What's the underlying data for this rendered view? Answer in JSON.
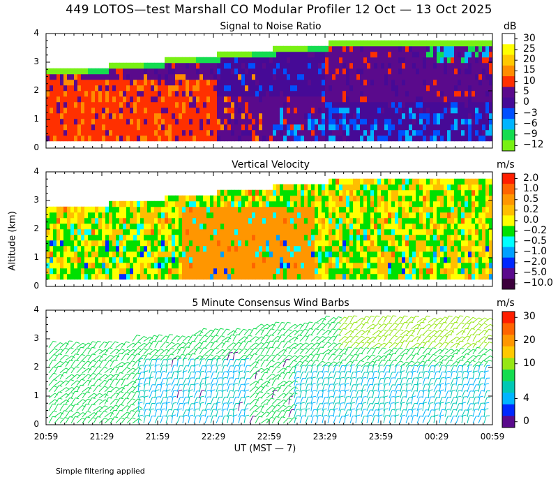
{
  "chart_data": {
    "type": "heatmap",
    "title": "449 LOTOS—test Marshall CO Modular Profiler 12 Oct — 13 Oct 2025",
    "ylabel": "Altitude (km)",
    "xlabel": "UT  (MST — 7)",
    "x_ticks": [
      "20:59",
      "21:29",
      "21:59",
      "22:29",
      "22:59",
      "23:29",
      "23:59",
      "00:29",
      "00:59"
    ],
    "y_ticks": [
      "0",
      "1",
      "2",
      "3",
      "4"
    ],
    "ylim": [
      0,
      4
    ],
    "footnote": "Simple filtering applied",
    "panels": [
      {
        "title": "Signal to Noise Ratio",
        "units": "dB",
        "colorbar_labels": [
          "30",
          "25",
          "20",
          "15",
          "10",
          "5",
          "0",
          "−3",
          "−6",
          "−9",
          "−12"
        ],
        "colors": [
          "#ffffff",
          "#ffff00",
          "#ffc800",
          "#ff8c00",
          "#ff3000",
          "#5a0a8c",
          "#460a96",
          "#0050ff",
          "#00b4ff",
          "#14dc50",
          "#78f014"
        ]
      },
      {
        "title": "Vertical Velocity",
        "units": "m/s",
        "colorbar_labels": [
          "2.0",
          "1.0",
          "0.5",
          "0.2",
          "0.0",
          "−0.2",
          "−0.5",
          "−1.0",
          "−2.0",
          "−5.0",
          "−10.0"
        ],
        "colors": [
          "#ff1e00",
          "#ff6400",
          "#ff9600",
          "#ffbe00",
          "#ffff00",
          "#00e000",
          "#00ffff",
          "#00a0ff",
          "#0028ff",
          "#5a0a8c",
          "#3c003c"
        ]
      },
      {
        "title": "5 Minute Consensus Wind Barbs",
        "units": "m/s",
        "colorbar_labels": [
          "30",
          "20",
          "10",
          "4",
          "0"
        ],
        "colors": [
          "#ff1e00",
          "#ff6400",
          "#ff9600",
          "#ffc800",
          "#96e614",
          "#14dc50",
          "#00c8b4",
          "#00b4ff",
          "#0028ff",
          "#5a0a8c"
        ]
      }
    ]
  }
}
